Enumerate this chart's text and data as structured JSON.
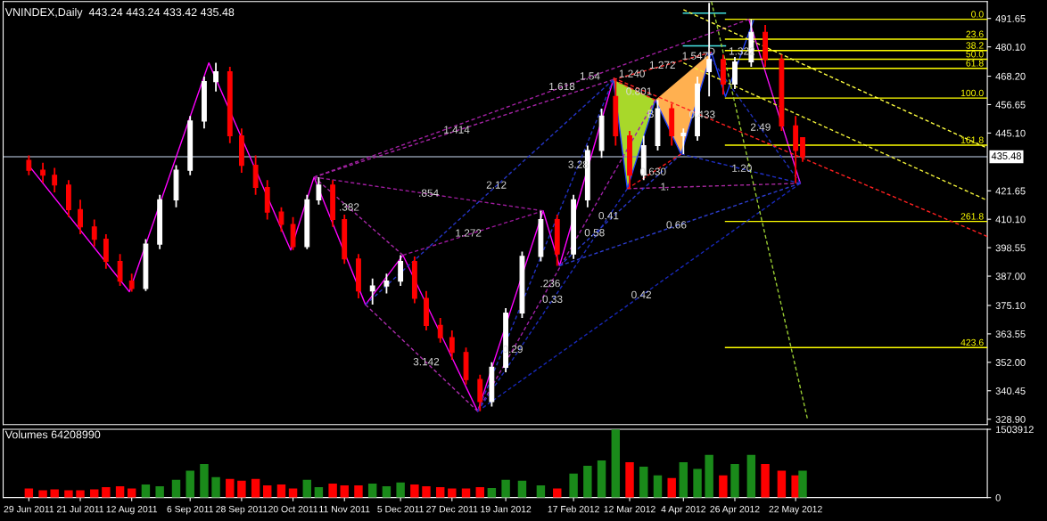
{
  "chart_data": [
    {
      "type": "candlestick",
      "title": "VNINDEX,Daily  443.24 443.24 433.42 435.48",
      "x": [
        "2011-06-29",
        "2011-07-05",
        "2011-07-10",
        "2011-07-16",
        "2011-07-21",
        "2011-07-27",
        "2011-08-01",
        "2011-08-07",
        "2011-08-12",
        "2011-08-18",
        "2011-08-24",
        "2011-08-31",
        "2011-09-06",
        "2011-09-12",
        "2011-09-17",
        "2011-09-23",
        "2011-09-28",
        "2011-10-04",
        "2011-10-09",
        "2011-10-15",
        "2011-10-20",
        "2011-10-26",
        "2011-10-31",
        "2011-11-06",
        "2011-11-11",
        "2011-11-17",
        "2011-11-23",
        "2011-11-29",
        "2011-12-05",
        "2011-12-11",
        "2011-12-16",
        "2011-12-22",
        "2011-12-27",
        "2012-01-02",
        "2012-01-08",
        "2012-01-13",
        "2012-01-19",
        "2012-01-26",
        "2012-02-03",
        "2012-02-10",
        "2012-02-17",
        "2012-02-23",
        "2012-02-29",
        "2012-03-06",
        "2012-03-12",
        "2012-03-18",
        "2012-03-24",
        "2012-03-30",
        "2012-04-04",
        "2012-04-10",
        "2012-04-15",
        "2012-04-21",
        "2012-04-26",
        "2012-05-03",
        "2012-05-09",
        "2012-05-16",
        "2012-05-22",
        "2012-05-25"
      ],
      "ohlc": [
        [
          434,
          436,
          428,
          430
        ],
        [
          430,
          433,
          425,
          428
        ],
        [
          428,
          431,
          421,
          424
        ],
        [
          424,
          426,
          411,
          414
        ],
        [
          414,
          418,
          404,
          407
        ],
        [
          407,
          410,
          399,
          402
        ],
        [
          402,
          404,
          390,
          393
        ],
        [
          393,
          396,
          383,
          385
        ],
        [
          385,
          388,
          380.7,
          382
        ],
        [
          382,
          402,
          381,
          400
        ],
        [
          400,
          420,
          398,
          418
        ],
        [
          418,
          432,
          415,
          430
        ],
        [
          430,
          452,
          428,
          450
        ],
        [
          450,
          468,
          447,
          466
        ],
        [
          466,
          473.6,
          462,
          470
        ],
        [
          470,
          472,
          441,
          444
        ],
        [
          444,
          447,
          429,
          432
        ],
        [
          432,
          436,
          420,
          423
        ],
        [
          423,
          426,
          410,
          413
        ],
        [
          413,
          415,
          405,
          408
        ],
        [
          408,
          411,
          397.6,
          399
        ],
        [
          399,
          420,
          398,
          418
        ],
        [
          418,
          427.2,
          416,
          424
        ],
        [
          424,
          426,
          407,
          410
        ],
        [
          410,
          412,
          392,
          394
        ],
        [
          394,
          396,
          378,
          381
        ],
        [
          381,
          386,
          375.4,
          383
        ],
        [
          383,
          388,
          380,
          385
        ],
        [
          385,
          395.5,
          383,
          393
        ],
        [
          393,
          395,
          376,
          378
        ],
        [
          378,
          381,
          365,
          367
        ],
        [
          367,
          370,
          360,
          362
        ],
        [
          362,
          365,
          353,
          356
        ],
        [
          356,
          358,
          343,
          345
        ],
        [
          345,
          347,
          332.1,
          336
        ],
        [
          336,
          352,
          334,
          350
        ],
        [
          350,
          374,
          348,
          372
        ],
        [
          372,
          397,
          370,
          395
        ],
        [
          395,
          413.5,
          393,
          410
        ],
        [
          410,
          412,
          391.2,
          396
        ],
        [
          396,
          420,
          394,
          418
        ],
        [
          418,
          440,
          415,
          438
        ],
        [
          438,
          455,
          435,
          452
        ],
        [
          460,
          466.8,
          440,
          444
        ],
        [
          444,
          446,
          422.5,
          428
        ],
        [
          428,
          444,
          426,
          440
        ],
        [
          440,
          458.5,
          438,
          455
        ],
        [
          455,
          457,
          440,
          444
        ],
        [
          444,
          447,
          436.6,
          445
        ],
        [
          444,
          468,
          442,
          465
        ],
        [
          470,
          498,
          460,
          475
        ],
        [
          475,
          477,
          460.7,
          465
        ],
        [
          465,
          476,
          463,
          474
        ],
        [
          474,
          491.3,
          472,
          486
        ],
        [
          486,
          489,
          472,
          475
        ],
        [
          475,
          477,
          446,
          448
        ],
        [
          448,
          452,
          424.7,
          438
        ],
        [
          443.24,
          443.24,
          433.42,
          435.48
        ]
      ],
      "colors": [
        "#ff0000",
        "#ff0000",
        "#ff0000",
        "#ff0000",
        "#ff0000",
        "#ff0000",
        "#ff0000",
        "#ff0000",
        "#ff0000",
        "#ffffff",
        "#ffffff",
        "#ffffff",
        "#ffffff",
        "#ffffff",
        "#ffffff",
        "#ff0000",
        "#ff0000",
        "#ff0000",
        "#ff0000",
        "#ff0000",
        "#ff0000",
        "#ffffff",
        "#ffffff",
        "#ff0000",
        "#ff0000",
        "#ff0000",
        "#ffffff",
        "#ffffff",
        "#ffffff",
        "#ff0000",
        "#ff0000",
        "#ff0000",
        "#ff0000",
        "#ff0000",
        "#ff0000",
        "#ffffff",
        "#ffffff",
        "#ffffff",
        "#ffffff",
        "#ff0000",
        "#ffffff",
        "#ffffff",
        "#ffffff",
        "#ff0000",
        "#ff0000",
        "#ffffff",
        "#ffffff",
        "#ff0000",
        "#ffffff",
        "#ffffff",
        "#ffffff",
        "#ff0000",
        "#ffffff",
        "#ffffff",
        "#ff0000",
        "#ff0000",
        "#ff0000",
        "#ff0000"
      ],
      "xlim": [
        "2011-06-18",
        "2012-08-12"
      ],
      "ylim": [
        326.7,
        498.5
      ],
      "yticks": [
        {
          "value": 328.9,
          "label": "328.90"
        },
        {
          "value": 340.45,
          "label": "340.45"
        },
        {
          "value": 352,
          "label": "352.00"
        },
        {
          "value": 363.55,
          "label": "363.55"
        },
        {
          "value": 375.1,
          "label": "375.10"
        },
        {
          "value": 387,
          "label": "387.00"
        },
        {
          "value": 398.55,
          "label": "398.55"
        },
        {
          "value": 410.1,
          "label": "410.10"
        },
        {
          "value": 421.65,
          "label": "421.65"
        },
        {
          "value": 445.1,
          "label": "445.10"
        },
        {
          "value": 456.65,
          "label": "456.65"
        },
        {
          "value": 468.2,
          "label": "468.20"
        },
        {
          "value": 480.1,
          "label": "480.10"
        },
        {
          "value": 491.65,
          "label": "491.65"
        }
      ],
      "tick_labels": "y",
      "series": [
        {
          "type": "area",
          "x": [
            "2012-03-05",
            "2012-03-11",
            "2012-03-23"
          ],
          "values": [
            466.8,
            422.5,
            458.5
          ],
          "color": "#a8d82a"
        },
        {
          "type": "area",
          "x": [
            "2012-03-23",
            "2012-04-03",
            "2012-04-16"
          ],
          "values": [
            458.5,
            436.6,
            477.9
          ],
          "color": "#ffb050"
        },
        {
          "type": "line",
          "x": [
            "2011-10-29",
            "2012-05-02"
          ],
          "values": [
            427.2,
            491.3
          ],
          "color": "#a020a0",
          "line_style": "dashed"
        },
        {
          "type": "line",
          "x": [
            "2011-10-29",
            "2012-03-05"
          ],
          "values": [
            427.2,
            466.8
          ],
          "color": "#a424a4",
          "line_style": "dashed"
        },
        {
          "type": "line",
          "x": [
            "2011-10-29",
            "2012-02-04"
          ],
          "values": [
            427.2,
            413.5
          ],
          "color": "#9c1c9c",
          "line_style": "dashed"
        },
        {
          "type": "line",
          "x": [
            "2011-10-29",
            "2011-12-06"
          ],
          "values": [
            427.2,
            395.5
          ],
          "color": "#a828a8",
          "line_style": "dashed"
        },
        {
          "type": "line",
          "x": [
            "2011-12-06",
            "2012-02-04"
          ],
          "values": [
            395.5,
            413.5
          ],
          "color": "#981898",
          "line_style": "dashed"
        },
        {
          "type": "line",
          "x": [
            "2011-11-20",
            "2012-01-07"
          ],
          "values": [
            375.4,
            332.1
          ],
          "color": "#ac2cac",
          "line_style": "dashed"
        },
        {
          "type": "line",
          "x": [
            "2012-01-07",
            "2012-03-23"
          ],
          "values": [
            332.1,
            458.5
          ],
          "color": "#a020a8",
          "line_style": "dashed"
        },
        {
          "type": "line",
          "x": [
            "2012-03-11",
            "2012-05-24"
          ],
          "values": [
            422.5,
            424.7
          ],
          "color": "#a828a0",
          "line_style": "dashed"
        },
        {
          "type": "line",
          "x": [
            "2012-01-07",
            "2012-03-05"
          ],
          "values": [
            332.1,
            466.8
          ],
          "color": "#2030c0",
          "line_style": "dashed"
        },
        {
          "type": "line",
          "x": [
            "2011-11-20",
            "2012-03-05"
          ],
          "values": [
            375.4,
            466.8
          ],
          "color": "#2434c4",
          "line_style": "dashed"
        },
        {
          "type": "line",
          "x": [
            "2012-01-07",
            "2012-03-11"
          ],
          "values": [
            332.1,
            422.5
          ],
          "color": "#1c2cbc",
          "line_style": "dashed"
        },
        {
          "type": "line",
          "x": [
            "2012-02-11",
            "2012-04-03"
          ],
          "values": [
            391.2,
            436.6
          ],
          "color": "#2838c8",
          "line_style": "dashed"
        },
        {
          "type": "line",
          "x": [
            "2012-01-07",
            "2012-05-24"
          ],
          "values": [
            332.1,
            424.7
          ],
          "color": "#1828b8",
          "line_style": "dashed"
        },
        {
          "type": "line",
          "x": [
            "2012-02-11",
            "2012-05-24"
          ],
          "values": [
            391.2,
            424.7
          ],
          "color": "#2c3ccc",
          "line_style": "dashed"
        },
        {
          "type": "line",
          "x": [
            "2012-04-03",
            "2012-05-24"
          ],
          "values": [
            436.6,
            424.7
          ],
          "color": "#2030c8",
          "line_style": "dashed"
        },
        {
          "type": "line",
          "x": [
            "2012-04-14",
            "2012-05-24"
          ],
          "values": [
            477.6,
            424.7
          ],
          "color": "#2030b8",
          "line_style": "dashed"
        },
        {
          "type": "line",
          "x": [
            "2012-03-05",
            "2012-08-12"
          ],
          "values": [
            467.5,
            403.1
          ],
          "color": "#ff2020",
          "line_style": "dashed"
        },
        {
          "type": "line",
          "x": [
            "2012-03-05",
            "2012-03-23"
          ],
          "values": [
            466.8,
            458.5
          ],
          "color": "#ff2828",
          "line_style": "dashed"
        },
        {
          "type": "line",
          "x": [
            "2012-03-11",
            "2012-04-03"
          ],
          "values": [
            422.5,
            436.6
          ],
          "color": "#f81818",
          "line_style": "dashed"
        },
        {
          "type": "line",
          "x": [
            "2012-03-05",
            "2012-04-16"
          ],
          "values": [
            466.8,
            477.9
          ],
          "color": "#ff3030",
          "line_style": "dashed"
        },
        {
          "type": "line",
          "x": [
            "2012-04-04",
            "2012-08-11"
          ],
          "values": [
            495.2,
            439.4
          ],
          "color": "#ffff40",
          "line_style": "dashed"
        },
        {
          "type": "line",
          "x": [
            "2012-04-04",
            "2012-08-11"
          ],
          "values": [
            473.6,
            418.2
          ],
          "color": "#f0f038",
          "line_style": "dashed"
        },
        {
          "type": "line",
          "x": [
            "2012-04-16",
            "2012-05-27"
          ],
          "values": [
            498.5,
            329.3
          ],
          "color": "#9acd32",
          "line_style": "dashed"
        },
        {
          "type": "line",
          "x": [
            "2012-04-04",
            "2012-04-22"
          ],
          "values": [
            493.8,
            493.8
          ],
          "color": "#40e0e0",
          "line_style": "solid"
        },
        {
          "type": "line",
          "x": [
            "2012-04-04",
            "2012-04-22"
          ],
          "values": [
            480.5,
            480.5
          ],
          "color": "#48e8e8",
          "line_style": "solid"
        },
        {
          "type": "line",
          "x": [
            "2011-06-29",
            "2011-08-11",
            "2011-09-14",
            "2011-10-19",
            "2011-10-29",
            "2011-11-20",
            "2011-12-06",
            "2012-01-07",
            "2012-02-04",
            "2012-02-11",
            "2012-03-05"
          ],
          "values": [
            431.9,
            380.7,
            473.6,
            397.6,
            427.2,
            375.4,
            395.5,
            332.1,
            413.5,
            391.2,
            466.8
          ],
          "color": "#ff00ff",
          "line_style": "solid"
        },
        {
          "type": "line",
          "x": [
            "2012-05-02",
            "2012-05-24"
          ],
          "values": [
            491.3,
            424.7
          ],
          "color": "#f010f0",
          "line_style": "solid"
        },
        {
          "type": "line",
          "x": [
            "2012-03-05",
            "2012-03-11",
            "2012-03-23",
            "2012-04-03",
            "2012-04-16",
            "2012-04-22",
            "2012-05-04"
          ],
          "values": [
            466.8,
            422.5,
            458.5,
            436.6,
            477.9,
            459.9,
            490.9
          ],
          "color": "#2040ff",
          "line_style": "solid"
        },
        {
          "type": "line",
          "name": "0.0",
          "x": [
            "2012-04-22",
            "2012-08-12"
          ],
          "values": [
            491.3,
            491.3
          ],
          "color": "#ffff00",
          "line_style": "solid"
        },
        {
          "type": "line",
          "name": "23.6",
          "x": [
            "2012-04-22",
            "2012-08-12"
          ],
          "values": [
            483.2,
            483.2
          ],
          "color": "#ffff00",
          "line_style": "solid"
        },
        {
          "type": "line",
          "name": "38.2",
          "x": [
            "2012-04-22",
            "2012-08-12"
          ],
          "values": [
            478.6,
            478.6
          ],
          "color": "#ffff00",
          "line_style": "solid"
        },
        {
          "type": "line",
          "name": "50.0",
          "x": [
            "2012-04-22",
            "2012-08-12"
          ],
          "values": [
            475.1,
            475.1
          ],
          "color": "#ffff00",
          "line_style": "solid"
        },
        {
          "type": "line",
          "name": "61.8",
          "x": [
            "2012-04-22",
            "2012-08-12"
          ],
          "values": [
            471.4,
            471.4
          ],
          "color": "#ffff00",
          "line_style": "solid"
        },
        {
          "type": "line",
          "name": "100.0",
          "x": [
            "2012-04-22",
            "2012-08-12"
          ],
          "values": [
            459.3,
            459.3
          ],
          "color": "#ffff00",
          "line_style": "solid"
        },
        {
          "type": "line",
          "name": "161.8",
          "x": [
            "2012-04-22",
            "2012-08-12"
          ],
          "values": [
            440.2,
            440.2
          ],
          "color": "#ffff00",
          "line_style": "solid"
        },
        {
          "type": "line",
          "name": "261.8",
          "x": [
            "2012-04-22",
            "2012-08-12"
          ],
          "values": [
            409.2,
            409.2
          ],
          "color": "#ffff00",
          "line_style": "solid"
        },
        {
          "type": "line",
          "name": "423.6",
          "x": [
            "2012-04-22",
            "2012-08-12"
          ],
          "values": [
            358.0,
            358.0
          ],
          "color": "#ffff00",
          "line_style": "solid"
        }
      ],
      "ref_lines": [
        {
          "axis": "y",
          "value": 435.48,
          "label": "435.48",
          "color": "#8a95a5"
        }
      ],
      "annotations": [
        {
          "text": "1.618",
          "x": "2012-02-12",
          "y": 463.7
        },
        {
          "text": "1.414",
          "x": "2011-12-29",
          "y": 446.1
        },
        {
          "text": ".854",
          "x": "2011-12-17",
          "y": 420.4
        },
        {
          "text": ".382",
          "x": "2011-11-13",
          "y": 414.7
        },
        {
          "text": "1.272",
          "x": "2012-01-03",
          "y": 404.2
        },
        {
          "text": "3.142",
          "x": "2011-12-16",
          "y": 351.9
        },
        {
          "text": ".236",
          "x": "2012-02-07",
          "y": 383.7
        },
        {
          "text": "1.",
          "x": "2012-03-27",
          "y": 423.0
        },
        {
          "text": "3.28",
          "x": "2012-02-19",
          "y": 432.0
        },
        {
          "text": "2.12",
          "x": "2012-01-15",
          "y": 423.7
        },
        {
          "text": "0.41",
          "x": "2012-03-03",
          "y": 411.2
        },
        {
          "text": "0.58",
          "x": "2012-02-26",
          "y": 404.3
        },
        {
          "text": "0.33",
          "x": "2012-02-08",
          "y": 377.3
        },
        {
          "text": "0.29",
          "x": "2012-01-22",
          "y": 357.0
        },
        {
          "text": "0.42",
          "x": "2012-03-17",
          "y": 379.1
        },
        {
          "text": "0.66",
          "x": "2012-04-01",
          "y": 407.5
        },
        {
          "text": "1.20",
          "x": "2012-04-29",
          "y": 430.5
        },
        {
          "text": "2.49",
          "x": "2012-05-07",
          "y": 447.2
        },
        {
          "text": "1.54",
          "x": "2012-02-24",
          "y": 467.9
        },
        {
          "text": "0.801",
          "x": "2012-03-16",
          "y": 461.7
        },
        {
          "text": "1.240",
          "x": "2012-03-13",
          "y": 468.9
        },
        {
          "text": "1.272",
          "x": "2012-03-26",
          "y": 472.4
        },
        {
          "text": "1.547",
          "x": "2012-04-09",
          "y": 476.1
        },
        {
          "text": "0.433",
          "x": "2012-04-12",
          "y": 452.3
        },
        {
          "text": "0.630",
          "x": "2012-03-22",
          "y": 429.1
        },
        {
          "text": "1.322",
          "x": "2012-04-29",
          "y": 478.0
        },
        {
          "text": "B",
          "x": "2012-03-21",
          "y": 452.5
        },
        {
          "text": "D",
          "x": "2012-04-16",
          "y": 477.9
        }
      ]
    },
    {
      "type": "bar",
      "title": "Volumes 64208990",
      "x": [
        "2011-06-29",
        "2011-07-05",
        "2011-07-10",
        "2011-07-16",
        "2011-07-21",
        "2011-07-27",
        "2011-08-01",
        "2011-08-07",
        "2011-08-12",
        "2011-08-18",
        "2011-08-24",
        "2011-08-31",
        "2011-09-06",
        "2011-09-12",
        "2011-09-17",
        "2011-09-23",
        "2011-09-28",
        "2011-10-04",
        "2011-10-09",
        "2011-10-15",
        "2011-10-20",
        "2011-10-26",
        "2011-10-31",
        "2011-11-06",
        "2011-11-11",
        "2011-11-17",
        "2011-11-23",
        "2011-11-29",
        "2011-12-05",
        "2011-12-11",
        "2011-12-16",
        "2011-12-22",
        "2011-12-27",
        "2012-01-02",
        "2012-01-08",
        "2012-01-13",
        "2012-01-19",
        "2012-01-26",
        "2012-02-03",
        "2012-02-10",
        "2012-02-17",
        "2012-02-23",
        "2012-02-29",
        "2012-03-06",
        "2012-03-12",
        "2012-03-18",
        "2012-03-24",
        "2012-03-30",
        "2012-04-04",
        "2012-04-10",
        "2012-04-15",
        "2012-04-21",
        "2012-04-26",
        "2012-05-03",
        "2012-05-09",
        "2012-05-16",
        "2012-05-22",
        "2012-05-25"
      ],
      "values": [
        200000,
        160000,
        180000,
        160000,
        160000,
        180000,
        230000,
        250000,
        200000,
        290000,
        250000,
        390000,
        590000,
        740000,
        450000,
        410000,
        370000,
        410000,
        270000,
        290000,
        200000,
        390000,
        230000,
        310000,
        270000,
        270000,
        310000,
        250000,
        330000,
        290000,
        250000,
        230000,
        200000,
        200000,
        230000,
        210000,
        390000,
        370000,
        270000,
        200000,
        530000,
        700000,
        820000,
        1500000,
        780000,
        680000,
        490000,
        430000,
        780000,
        630000,
        940000,
        490000,
        740000,
        940000,
        740000,
        590000,
        490000,
        590000
      ],
      "colors": [
        "#ff0000",
        "#ff0000",
        "#ff0000",
        "#ff0000",
        "#ff0000",
        "#ff0000",
        "#ff0000",
        "#ff0000",
        "#ff0000",
        "#1a8a1a",
        "#1a8a1a",
        "#1a8a1a",
        "#1a8a1a",
        "#1a8a1a",
        "#1a8a1a",
        "#ff0000",
        "#ff0000",
        "#ff0000",
        "#ff0000",
        "#ff0000",
        "#ff0000",
        "#1a8a1a",
        "#1a8a1a",
        "#ff0000",
        "#ff0000",
        "#ff0000",
        "#1a8a1a",
        "#1a8a1a",
        "#1a8a1a",
        "#ff0000",
        "#ff0000",
        "#ff0000",
        "#ff0000",
        "#ff0000",
        "#ff0000",
        "#1a8a1a",
        "#1a8a1a",
        "#1a8a1a",
        "#1a8a1a",
        "#ff0000",
        "#1a8a1a",
        "#1a8a1a",
        "#1a8a1a",
        "#1a8a1a",
        "#ff0000",
        "#1a8a1a",
        "#1a8a1a",
        "#ff0000",
        "#1a8a1a",
        "#1a8a1a",
        "#1a8a1a",
        "#ff0000",
        "#1a8a1a",
        "#1a8a1a",
        "#ff0000",
        "#ff0000",
        "#ff0000",
        "#1a8a1a"
      ],
      "xlim": [
        "2011-06-18",
        "2012-08-12"
      ],
      "ylim": [
        0,
        1503912
      ],
      "yticks": [
        0,
        1503912
      ],
      "xticks": [
        {
          "value": "2011-06-29",
          "label": "29 Jun 2011"
        },
        {
          "value": "2011-07-21",
          "label": "21 Jul 2011"
        },
        {
          "value": "2011-08-12",
          "label": "12 Aug 2011"
        },
        {
          "value": "2011-09-06",
          "label": "6 Sep 2011"
        },
        {
          "value": "2011-09-28",
          "label": "28 Sep 2011"
        },
        {
          "value": "2011-10-20",
          "label": "20 Oct 2011"
        },
        {
          "value": "2011-11-11",
          "label": "11 Nov 2011"
        },
        {
          "value": "2011-12-05",
          "label": "5 Dec 2011"
        },
        {
          "value": "2011-12-27",
          "label": "27 Dec 2011"
        },
        {
          "value": "2012-01-19",
          "label": "19 Jan 2012"
        },
        {
          "value": "2012-02-17",
          "label": "17 Feb 2012"
        },
        {
          "value": "2012-03-12",
          "label": "12 Mar 2012"
        },
        {
          "value": "2012-04-04",
          "label": "4 Apr 2012"
        },
        {
          "value": "2012-04-26",
          "label": "26 Apr 2012"
        },
        {
          "value": "2012-05-22",
          "label": "22 May 2012"
        }
      ]
    }
  ]
}
